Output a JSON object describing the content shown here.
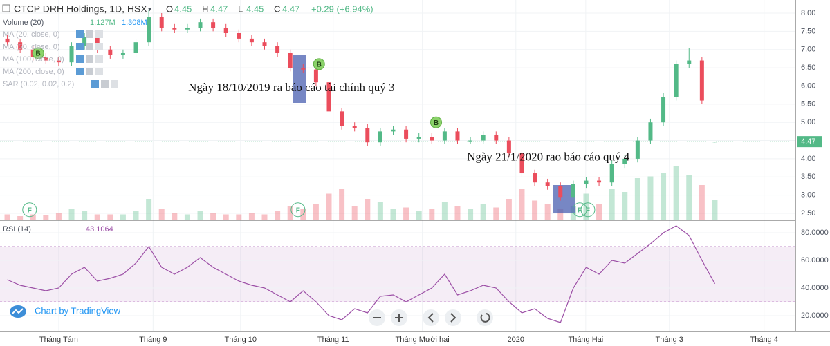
{
  "header": {
    "title": "CTCP DRH Holdings, 1D, HSX",
    "ohlc": [
      {
        "label": "O",
        "value": 4.45
      },
      {
        "label": "H",
        "value": 4.47
      },
      {
        "label": "L",
        "value": 4.45
      },
      {
        "label": "C",
        "value": 4.47
      }
    ],
    "change": "+0.29 (+6.94%)",
    "volume_label": "Volume (20)",
    "volume_values": [
      "1.127M",
      "1.308M"
    ],
    "indicators": [
      "MA (20, close, 0)",
      "MA (50, close, 0)",
      "MA (100, close, 0)",
      "MA (200, close, 0)",
      "SAR (0.02, 0.02, 0.2)"
    ],
    "branding": "Chart by TradingView"
  },
  "chart_data": [
    {
      "type": "candlestick",
      "x": [
        -12,
        -9,
        -6,
        -3,
        0,
        3,
        6,
        9,
        12,
        15,
        18,
        21,
        24,
        27,
        30,
        33,
        36,
        39,
        42,
        45,
        48,
        51,
        54,
        57,
        60,
        63,
        66,
        69,
        72,
        75,
        78,
        81,
        84,
        87,
        90,
        93,
        96,
        99,
        102,
        105,
        108,
        111,
        114,
        117,
        120,
        123,
        126,
        129,
        132,
        135,
        138,
        141,
        144,
        147,
        150,
        153
      ],
      "open": [
        7.3,
        7.2,
        7.0,
        6.8,
        6.7,
        6.65,
        7.1,
        7.35,
        7.0,
        6.85,
        6.9,
        7.2,
        7.9,
        7.6,
        7.55,
        7.6,
        7.75,
        7.6,
        7.45,
        7.3,
        7.2,
        7.1,
        6.9,
        6.5,
        6.45,
        6.1,
        5.3,
        4.9,
        4.85,
        4.45,
        4.75,
        4.8,
        4.55,
        4.6,
        4.5,
        4.75,
        4.5,
        4.5,
        4.65,
        4.5,
        4.15,
        3.6,
        3.35,
        3.25,
        2.95,
        3.3,
        3.4,
        3.35,
        3.85,
        4.0,
        4.5,
        5.0,
        5.7,
        6.6,
        6.7,
        4.45
      ],
      "high": [
        7.4,
        7.3,
        7.1,
        6.9,
        6.8,
        7.2,
        7.45,
        7.45,
        7.1,
        7.0,
        7.3,
        8.1,
        8.0,
        7.7,
        7.7,
        7.85,
        7.85,
        7.7,
        7.55,
        7.4,
        7.3,
        7.2,
        7.0,
        6.6,
        6.55,
        6.2,
        5.4,
        5.0,
        4.95,
        4.85,
        4.9,
        4.9,
        4.7,
        4.7,
        4.85,
        4.85,
        4.6,
        4.75,
        4.75,
        4.6,
        4.25,
        3.7,
        3.45,
        3.35,
        3.4,
        3.5,
        3.5,
        3.95,
        4.1,
        4.6,
        5.1,
        5.8,
        6.7,
        7.05,
        6.8,
        4.47
      ],
      "low": [
        7.1,
        6.9,
        6.7,
        6.6,
        6.55,
        6.55,
        7.0,
        6.9,
        6.75,
        6.75,
        6.8,
        7.1,
        7.5,
        7.45,
        7.45,
        7.5,
        7.5,
        7.35,
        7.2,
        7.1,
        7.0,
        6.8,
        6.4,
        6.35,
        6.0,
        5.2,
        4.8,
        4.75,
        4.35,
        4.35,
        4.65,
        4.45,
        4.45,
        4.4,
        4.4,
        4.4,
        4.4,
        4.4,
        4.4,
        4.05,
        3.5,
        3.25,
        3.15,
        2.85,
        2.85,
        3.2,
        3.25,
        3.25,
        3.75,
        3.9,
        4.4,
        4.9,
        5.6,
        6.5,
        5.5,
        4.45
      ],
      "close": [
        7.2,
        7.0,
        6.8,
        6.7,
        6.65,
        7.1,
        7.35,
        7.0,
        6.85,
        6.9,
        7.2,
        7.9,
        7.6,
        7.55,
        7.6,
        7.75,
        7.6,
        7.45,
        7.3,
        7.2,
        7.1,
        6.9,
        6.5,
        6.45,
        6.1,
        5.3,
        4.9,
        4.85,
        4.45,
        4.75,
        4.8,
        4.55,
        4.6,
        4.5,
        4.75,
        4.5,
        4.5,
        4.65,
        4.5,
        4.15,
        3.6,
        3.35,
        3.25,
        2.95,
        3.3,
        3.4,
        3.35,
        3.85,
        4.0,
        4.5,
        5.0,
        5.7,
        6.6,
        6.7,
        5.6,
        4.47
      ],
      "volume": [
        0.3,
        0.2,
        0.3,
        0.25,
        0.4,
        0.6,
        0.5,
        0.3,
        0.3,
        0.3,
        0.5,
        1.2,
        0.6,
        0.4,
        0.3,
        0.5,
        0.4,
        0.3,
        0.3,
        0.4,
        0.3,
        0.5,
        0.8,
        0.6,
        0.9,
        1.5,
        1.8,
        0.8,
        1.2,
        1.0,
        0.6,
        0.7,
        0.5,
        0.6,
        1.0,
        0.8,
        0.6,
        0.9,
        0.7,
        1.2,
        1.8,
        1.1,
        0.9,
        0.6,
        0.8,
        1.5,
        0.9,
        1.8,
        1.6,
        2.4,
        2.5,
        2.7,
        3.1,
        2.6,
        2.0,
        1.127
      ],
      "volume_lim": [
        0,
        4
      ],
      "up_color": "#53b987",
      "down_color": "#eb4d5c",
      "xlim": [
        -13.7,
        171.8
      ],
      "xticks": [
        {
          "value": 0,
          "label": "Tháng Tám"
        },
        {
          "value": 22,
          "label": "Tháng 9"
        },
        {
          "value": 42.4,
          "label": "Tháng 10"
        },
        {
          "value": 64,
          "label": "Tháng 11"
        },
        {
          "value": 84.8,
          "label": "Tháng Mười hai"
        },
        {
          "value": 106.6,
          "label": "2020"
        },
        {
          "value": 122.9,
          "label": "Tháng Hai"
        },
        {
          "value": 142.4,
          "label": "Tháng 3"
        },
        {
          "value": 164.5,
          "label": "Tháng 4"
        }
      ],
      "ylim": [
        2.33,
        8.36
      ],
      "yticks": [
        {
          "value": 2.5,
          "label": "2.50"
        },
        {
          "value": 3,
          "label": "3.00"
        },
        {
          "value": 3.5,
          "label": "3.50"
        },
        {
          "value": 4,
          "label": "4.00"
        },
        {
          "value": 4.5,
          "label": "4.50"
        },
        {
          "value": 5,
          "label": "5.00"
        },
        {
          "value": 5.5,
          "label": "5.50"
        },
        {
          "value": 6,
          "label": "6.00"
        },
        {
          "value": 6.5,
          "label": "6.50"
        },
        {
          "value": 7,
          "label": "7.00"
        },
        {
          "value": 7.5,
          "label": "7.50"
        },
        {
          "value": 8,
          "label": "8.00"
        }
      ],
      "grid": true,
      "markers": [
        {
          "text": "B",
          "x": -4.8,
          "y": 6.9
        },
        {
          "text": "B",
          "x": 60.7,
          "y": 6.6
        },
        {
          "text": "B",
          "x": 88,
          "y": 5.0
        },
        {
          "text": "F",
          "x": -6.8,
          "y": 2.6
        },
        {
          "text": "F",
          "x": 55.8,
          "y": 2.6
        },
        {
          "text": "F",
          "x": 121.5,
          "y": 2.6
        },
        {
          "text": "F",
          "x": 123.4,
          "y": 2.6
        }
      ],
      "annotations": [
        {
          "text": "Ngày 18/10/2019 ra báo cáo tài chính quý 3",
          "x": 30.2,
          "y": 5.93
        },
        {
          "text": "Ngày 21/1/2020 rao báo cáo quý 4",
          "x": 95.2,
          "y": 4.03
        }
      ]
    },
    {
      "type": "line",
      "title": "RSI (14)",
      "color": "#9c4fa6",
      "x": [
        -12,
        -9,
        -6,
        -3,
        0,
        3,
        6,
        9,
        12,
        15,
        18,
        21,
        24,
        27,
        30,
        33,
        36,
        39,
        42,
        45,
        48,
        51,
        54,
        57,
        60,
        63,
        66,
        69,
        72,
        75,
        78,
        81,
        84,
        87,
        90,
        93,
        96,
        99,
        102,
        105,
        108,
        111,
        114,
        117,
        120,
        123,
        126,
        129,
        132,
        135,
        138,
        141,
        144,
        147,
        150,
        153
      ],
      "values": [
        46,
        42,
        40,
        38,
        40,
        50,
        55,
        45,
        47,
        50,
        58,
        70,
        55,
        50,
        55,
        62,
        55,
        50,
        45,
        42,
        40,
        35,
        30,
        38,
        30,
        20,
        17,
        25,
        22,
        34,
        35,
        30,
        35,
        40,
        50,
        35,
        38,
        42,
        40,
        30,
        22,
        25,
        18,
        15,
        40,
        55,
        50,
        60,
        58,
        65,
        72,
        80,
        85,
        78,
        60,
        43.1064
      ],
      "xlim": [
        -13.7,
        171.8
      ],
      "ylim": [
        8.5,
        88.5
      ],
      "band": [
        30,
        70
      ],
      "yticks": [
        {
          "value": 20,
          "label": "20.0000"
        },
        {
          "value": 40,
          "label": "40.0000"
        },
        {
          "value": 60,
          "label": "60.0000"
        },
        {
          "value": 80,
          "label": "80.0000"
        }
      ]
    }
  ]
}
